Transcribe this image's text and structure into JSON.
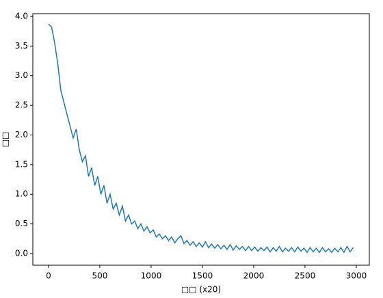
{
  "chart_data": {
    "type": "line",
    "xlabel": "□□ (x20)",
    "ylabel": "□□",
    "xlim": [
      -153,
      3127
    ],
    "ylim": [
      -0.196,
      4.046
    ],
    "xticks": [
      0,
      500,
      1000,
      1500,
      2000,
      2500,
      3000
    ],
    "yticks": [
      {
        "value": 0,
        "label": "0.0"
      },
      0.5,
      {
        "value": 1,
        "label": "1.0"
      },
      1.5,
      {
        "value": 2,
        "label": "2.0"
      },
      2.5,
      {
        "value": 3,
        "label": "3.0"
      },
      3.5,
      {
        "value": 4,
        "label": "4.0"
      }
    ],
    "grid": false,
    "series": [
      {
        "color": "#1f77b4",
        "x": [
          0,
          30,
          60,
          90,
          120,
          150,
          180,
          210,
          240,
          270,
          300,
          330,
          360,
          390,
          420,
          450,
          480,
          510,
          540,
          570,
          600,
          630,
          660,
          690,
          720,
          750,
          780,
          810,
          840,
          870,
          900,
          930,
          960,
          990,
          1020,
          1050,
          1080,
          1110,
          1140,
          1170,
          1200,
          1230,
          1260,
          1290,
          1320,
          1350,
          1380,
          1410,
          1440,
          1470,
          1500,
          1530,
          1560,
          1590,
          1620,
          1650,
          1680,
          1710,
          1740,
          1770,
          1800,
          1830,
          1860,
          1890,
          1920,
          1950,
          1980,
          2010,
          2040,
          2070,
          2100,
          2130,
          2160,
          2190,
          2220,
          2250,
          2280,
          2310,
          2340,
          2370,
          2400,
          2430,
          2460,
          2490,
          2520,
          2550,
          2580,
          2610,
          2640,
          2670,
          2700,
          2730,
          2760,
          2790,
          2820,
          2850,
          2880,
          2910,
          2940,
          2970
        ],
        "values": [
          3.87,
          3.82,
          3.55,
          3.2,
          2.75,
          2.55,
          2.35,
          2.15,
          1.95,
          2.1,
          1.75,
          1.55,
          1.65,
          1.3,
          1.45,
          1.15,
          1.3,
          1.0,
          1.15,
          0.85,
          1.0,
          0.75,
          0.85,
          0.65,
          0.8,
          0.55,
          0.65,
          0.5,
          0.55,
          0.42,
          0.5,
          0.38,
          0.45,
          0.35,
          0.4,
          0.28,
          0.33,
          0.25,
          0.3,
          0.22,
          0.28,
          0.18,
          0.25,
          0.3,
          0.17,
          0.22,
          0.14,
          0.2,
          0.12,
          0.18,
          0.11,
          0.2,
          0.1,
          0.16,
          0.09,
          0.15,
          0.08,
          0.14,
          0.07,
          0.15,
          0.06,
          0.13,
          0.07,
          0.12,
          0.05,
          0.12,
          0.05,
          0.11,
          0.04,
          0.1,
          0.05,
          0.11,
          0.03,
          0.1,
          0.04,
          0.12,
          0.03,
          0.09,
          0.04,
          0.1,
          0.03,
          0.11,
          0.04,
          0.09,
          0.02,
          0.1,
          0.03,
          0.09,
          0.02,
          0.1,
          0.03,
          0.08,
          0.02,
          0.09,
          0.03,
          0.1,
          0.02,
          0.12,
          0.03,
          0.1
        ]
      }
    ]
  }
}
